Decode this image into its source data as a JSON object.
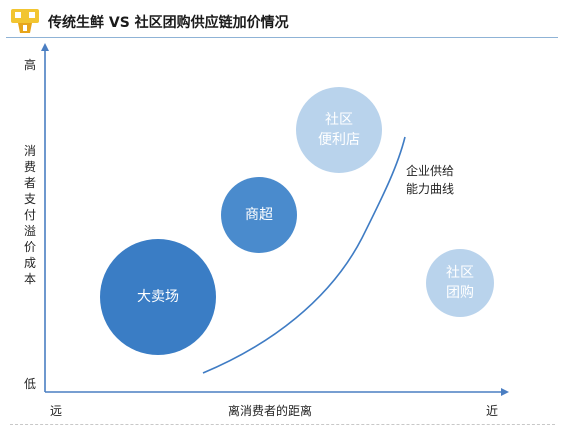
{
  "header": {
    "title": "传统生鲜 VS 社区团购供应链加价情况"
  },
  "axes": {
    "y_label": "消费者支付溢价成本",
    "y_high": "高",
    "y_low": "低",
    "x_label": "离消费者的距离",
    "x_far": "远",
    "x_near": "近"
  },
  "bubbles": {
    "hypermarket": "大卖场",
    "supermarket": "商超",
    "community_store": "社区\n便利店",
    "community_group": "社区\n团购"
  },
  "curve": {
    "label": "企业供给\n能力曲线"
  },
  "colors": {
    "bubble_dark": "#3a7dc5",
    "bubble_medium": "#4a8bcd",
    "bubble_light": "#b9d3ec",
    "axis": "#4a7ec2",
    "curve": "#3f7cc4"
  }
}
